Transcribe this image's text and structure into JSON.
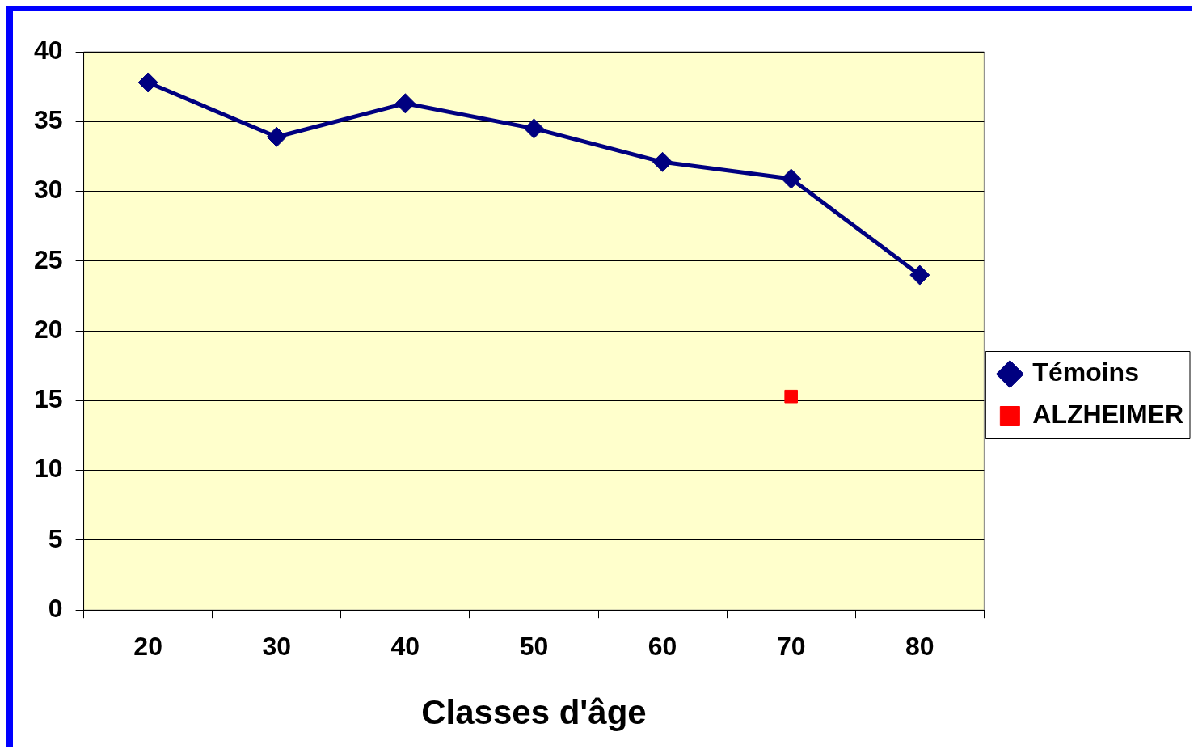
{
  "chart_data": {
    "type": "line",
    "xlabel": "Classes d'âge",
    "categories": [
      "20",
      "30",
      "40",
      "50",
      "60",
      "70",
      "80"
    ],
    "series": [
      {
        "name": "Témoins",
        "color": "#000080",
        "values": [
          37.8,
          33.9,
          36.3,
          34.5,
          32.1,
          30.9,
          24.0
        ],
        "marker": "diamond"
      },
      {
        "name": "ALZHEIMER",
        "color": "#ff0000",
        "values": [
          null,
          null,
          null,
          null,
          null,
          15.3,
          null
        ],
        "marker": "square"
      }
    ],
    "ylim": [
      0,
      40
    ],
    "yticks": [
      0,
      5,
      10,
      15,
      20,
      25,
      30,
      35,
      40
    ],
    "grid": "y",
    "legend": "right",
    "line_style": "solid"
  }
}
